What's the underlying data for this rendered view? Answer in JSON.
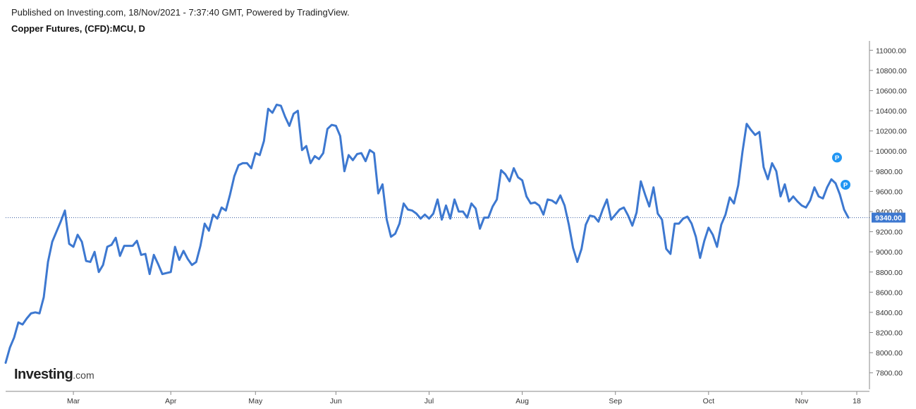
{
  "header": {
    "published": "Published on Investing.com, 18/Nov/2021 - 7:37:40 GMT, Powered by TradingView.",
    "symbol": "Copper Futures, (CFD):MCU, D"
  },
  "logo": {
    "brand": "Investing",
    "suffix": ".com"
  },
  "colors": {
    "line": "#3d78d0",
    "axis": "#888888",
    "price_tag": "#3d78d0",
    "marker": "#2196f3",
    "current_line": "#3d5fa0"
  },
  "chart_data": {
    "type": "line",
    "title": "Copper Futures, (CFD):MCU, D",
    "xlabel": "",
    "ylabel": "",
    "ylim": [
      7700,
      11100
    ],
    "y_ticks": [
      "7800.00",
      "8000.00",
      "8200.00",
      "8400.00",
      "8600.00",
      "8800.00",
      "9000.00",
      "9200.00",
      "9400.00",
      "9600.00",
      "9800.00",
      "10000.00",
      "10200.00",
      "10400.00",
      "10600.00",
      "10800.00",
      "11000.00"
    ],
    "x_ticks": [
      {
        "label": "Mar",
        "index": 16
      },
      {
        "label": "Apr",
        "index": 39
      },
      {
        "label": "May",
        "index": 59
      },
      {
        "label": "Jun",
        "index": 78
      },
      {
        "label": "Jul",
        "index": 100
      },
      {
        "label": "Aug",
        "index": 122
      },
      {
        "label": "Sep",
        "index": 144
      },
      {
        "label": "Oct",
        "index": 166
      },
      {
        "label": "Nov",
        "index": 188
      },
      {
        "label": "18",
        "index": 201
      }
    ],
    "current_value": 9340,
    "current_label": "9340.00",
    "markers": [
      {
        "label": "P",
        "index": 197,
        "value": 9810
      },
      {
        "label": "P",
        "index": 199,
        "value": 9540
      }
    ],
    "series": [
      {
        "name": "Copper Futures (CFD):MCU",
        "values": [
          7900,
          8050,
          8150,
          8300,
          8280,
          8340,
          8390,
          8400,
          8390,
          8550,
          8900,
          9100,
          9200,
          9300,
          9410,
          9080,
          9050,
          9170,
          9100,
          8910,
          8900,
          9000,
          8800,
          8870,
          9050,
          9070,
          9140,
          8960,
          9060,
          9060,
          9060,
          9110,
          8970,
          8980,
          8780,
          8970,
          8880,
          8780,
          8790,
          8800,
          9050,
          8920,
          9010,
          8930,
          8870,
          8900,
          9060,
          9280,
          9210,
          9370,
          9330,
          9440,
          9410,
          9570,
          9750,
          9860,
          9880,
          9880,
          9830,
          9980,
          9960,
          10100,
          10420,
          10380,
          10460,
          10450,
          10340,
          10250,
          10370,
          10400,
          10010,
          10050,
          9880,
          9950,
          9920,
          9980,
          10220,
          10260,
          10250,
          10150,
          9800,
          9960,
          9910,
          9970,
          9980,
          9900,
          10010,
          9980,
          9580,
          9670,
          9320,
          9150,
          9180,
          9280,
          9480,
          9420,
          9410,
          9380,
          9330,
          9370,
          9330,
          9380,
          9520,
          9320,
          9460,
          9330,
          9520,
          9400,
          9400,
          9340,
          9480,
          9430,
          9230,
          9340,
          9340,
          9450,
          9520,
          9810,
          9770,
          9700,
          9830,
          9740,
          9710,
          9550,
          9480,
          9490,
          9460,
          9370,
          9520,
          9510,
          9480,
          9560,
          9460,
          9270,
          9040,
          8900,
          9030,
          9270,
          9360,
          9350,
          9300,
          9420,
          9520,
          9320,
          9370,
          9420,
          9440,
          9360,
          9260,
          9390,
          9700,
          9570,
          9450,
          9640,
          9380,
          9320,
          9030,
          8980,
          9280,
          9280,
          9330,
          9350,
          9280,
          9150,
          8940,
          9110,
          9240,
          9170,
          9050,
          9270,
          9370,
          9540,
          9480,
          9660,
          9990,
          10270,
          10210,
          10160,
          10190,
          9840,
          9720,
          9880,
          9800,
          9550,
          9670,
          9500,
          9550,
          9500,
          9460,
          9440,
          9510,
          9640,
          9550,
          9530,
          9640,
          9720,
          9680,
          9570,
          9420,
          9340
        ]
      }
    ]
  }
}
